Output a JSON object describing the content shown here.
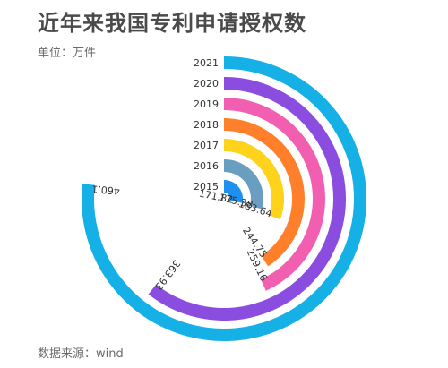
{
  "title": "近年来我国专利申请授权数",
  "unit_label": "单位：万件",
  "source_label": "数据来源：wind",
  "chart_data": {
    "type": "radial-bar",
    "title": "近年来我国专利申请授权数",
    "unit": "万件",
    "categories": [
      "2015",
      "2016",
      "2017",
      "2018",
      "2019",
      "2020",
      "2021"
    ],
    "values": [
      171.82,
      175.38,
      183.64,
      244.75,
      259.16,
      363.93,
      460.1
    ],
    "value_labels": [
      "171.82",
      "175.38",
      "183.64",
      "244.75",
      "259.16",
      "363.93",
      "460.1"
    ],
    "colors": [
      "#1e90f0",
      "#6a9ec0",
      "#ffd21c",
      "#ff7f2a",
      "#f25fb0",
      "#8a4ddf",
      "#14b0e6"
    ]
  }
}
